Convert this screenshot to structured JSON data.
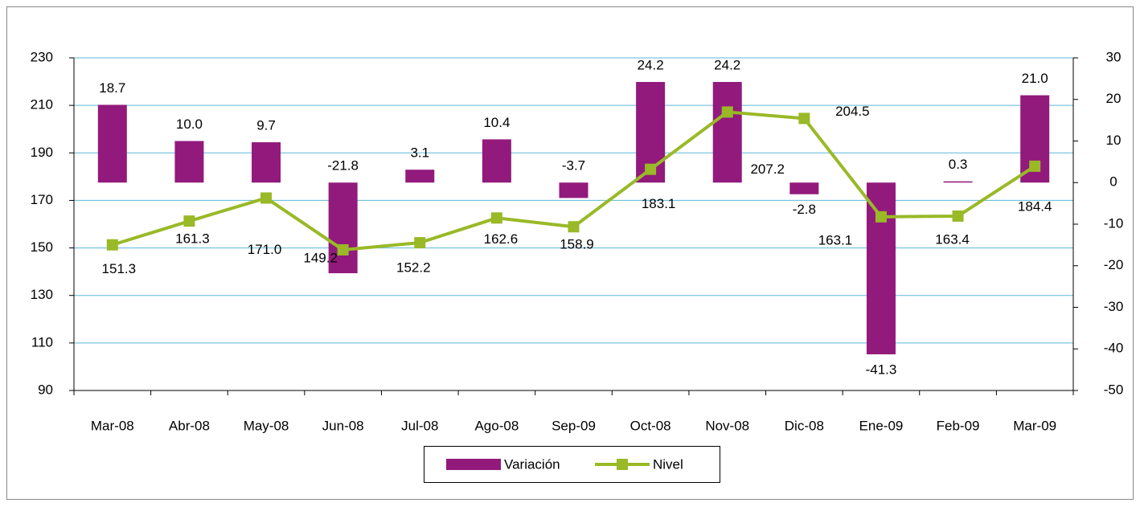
{
  "chart_data": {
    "type": "bar-line",
    "categories": [
      "Mar-08",
      "Abr-08",
      "May-08",
      "Jun-08",
      "Jul-08",
      "Ago-08",
      "Sep-09",
      "Oct-08",
      "Nov-08",
      "Dic-08",
      "Ene-09",
      "Feb-09",
      "Mar-09"
    ],
    "series": [
      {
        "name": "Variación",
        "type": "bar",
        "axis": "y2",
        "color": "#921a7c",
        "values": [
          18.7,
          10.0,
          9.7,
          -21.8,
          3.1,
          10.4,
          -3.7,
          24.2,
          24.2,
          -2.8,
          -41.3,
          0.3,
          21.0
        ],
        "value_labels": [
          "18.7",
          "10.0",
          "9.7",
          "-21.8",
          "3.1",
          "10.4",
          "-3.7",
          "24.2",
          "24.2",
          "-2.8",
          "-41.3",
          "0.3",
          "21.0"
        ]
      },
      {
        "name": "Nivel",
        "type": "line",
        "axis": "y",
        "color": "#99b927",
        "values": [
          151.3,
          161.3,
          171.0,
          149.2,
          152.2,
          162.6,
          158.9,
          183.1,
          207.2,
          204.5,
          163.1,
          163.4,
          184.4
        ],
        "value_labels": [
          "151.3",
          "161.3",
          "171.0",
          "149.2",
          "152.2",
          "162.6",
          "158.9",
          "183.1",
          "207.2",
          "204.5",
          "163.1",
          "163.4",
          "184.4"
        ]
      }
    ],
    "ylim": [
      90,
      230
    ],
    "yticks": [
      90,
      110,
      130,
      150,
      170,
      190,
      210,
      230
    ],
    "y2lim": [
      -50,
      30
    ],
    "y2ticks": [
      -50,
      -40,
      -30,
      -20,
      -10,
      0,
      10,
      20,
      30
    ],
    "grid": true,
    "legend": "bottom"
  }
}
